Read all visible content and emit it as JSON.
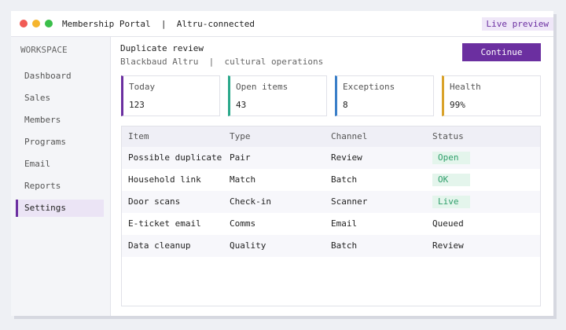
{
  "window": {
    "title": "Membership Portal  |  Altru-connected",
    "badge": "Live preview"
  },
  "sidebar": {
    "heading": "WORKSPACE",
    "items": [
      "Dashboard",
      "Sales",
      "Members",
      "Programs",
      "Email",
      "Reports",
      "Settings"
    ]
  },
  "header": {
    "title": "Duplicate review",
    "subtitle": "Blackbaud Altru  |  cultural operations",
    "button": "Continue"
  },
  "kpis": [
    {
      "label": "Today",
      "value": 123
    },
    {
      "label": "Open items",
      "value": 43
    },
    {
      "label": "Exceptions",
      "value": 8
    },
    {
      "label": "Health",
      "value": "99%"
    }
  ],
  "table": {
    "columns": [
      "Item",
      "Type",
      "Channel",
      "Status"
    ],
    "rows": [
      [
        "Possible duplicate",
        "Pair",
        "Review",
        "Open"
      ],
      [
        "Household link",
        "Match",
        "Batch",
        "OK"
      ],
      [
        "Door scans",
        "Check-in",
        "Scanner",
        "Live"
      ],
      [
        "E-ticket email",
        "Comms",
        "Email",
        "Queued"
      ],
      [
        "Data cleanup",
        "Quality",
        "Batch",
        "Review"
      ]
    ]
  }
}
